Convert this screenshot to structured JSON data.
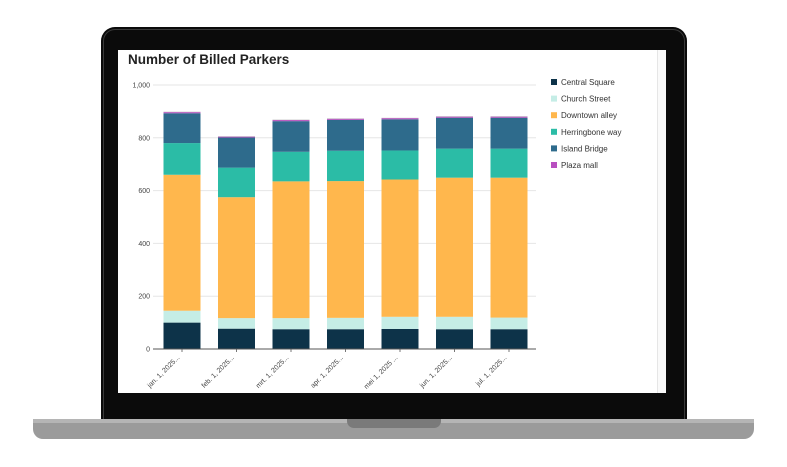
{
  "chart_data": {
    "type": "bar",
    "stacked": true,
    "title": "Number of Billed Parkers",
    "xlabel": "",
    "ylabel": "",
    "ylim": [
      0,
      1000
    ],
    "yticks": [
      0,
      200,
      400,
      600,
      800,
      1000
    ],
    "ytick_labels": [
      "0",
      "200",
      "400",
      "600",
      "800",
      "1,000"
    ],
    "grid": true,
    "legend_position": "right",
    "categories": [
      "jan. 1, 2025...",
      "feb. 1, 2025...",
      "mrt. 1, 2025...",
      "apr. 1, 2025...",
      "mei 1, 2025 ...",
      "jun. 1, 2025...",
      "jul. 1, 2025..."
    ],
    "series": [
      {
        "name": "Central Square",
        "color": "#0d3349",
        "values": [
          100,
          77,
          75,
          75,
          76,
          75,
          75
        ]
      },
      {
        "name": "Church Street",
        "color": "#c5ede6",
        "values": [
          45,
          40,
          42,
          43,
          46,
          47,
          44
        ]
      },
      {
        "name": "Downtown alley",
        "color": "#ffb74d",
        "values": [
          515,
          458,
          518,
          518,
          520,
          527,
          530
        ]
      },
      {
        "name": "Herringbone way",
        "color": "#2bbca6",
        "values": [
          120,
          112,
          112,
          115,
          110,
          110,
          110
        ]
      },
      {
        "name": "Island Bridge",
        "color": "#2e6b8c",
        "values": [
          113,
          114,
          116,
          117,
          118,
          117,
          117
        ]
      },
      {
        "name": "Plaza mall",
        "color": "#b84fc0",
        "values": [
          5,
          4,
          5,
          5,
          5,
          5,
          5
        ]
      }
    ]
  }
}
